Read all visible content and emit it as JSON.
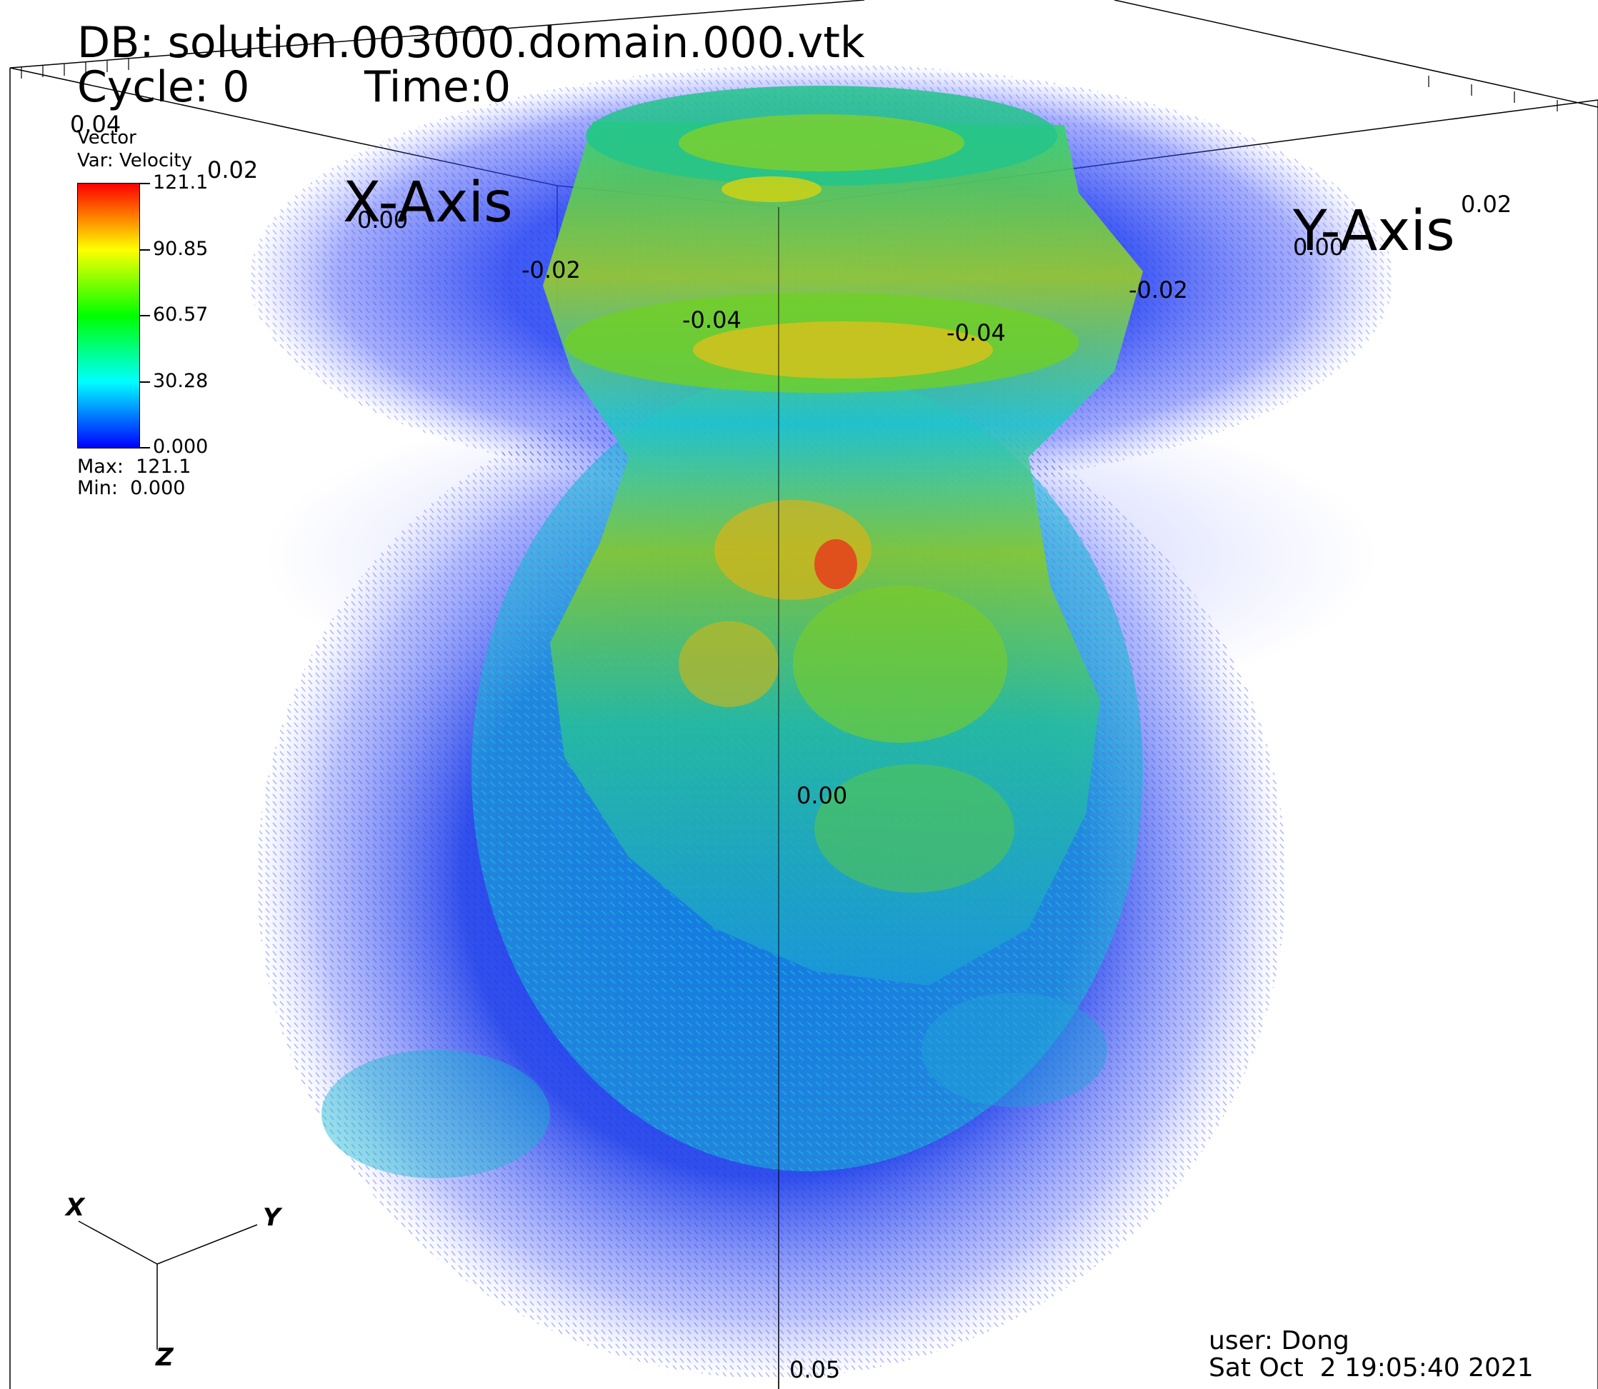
{
  "header": {
    "db": "DB: solution.003000.domain.000.vtk",
    "cycle": "Cycle: 0",
    "time": "Time:0"
  },
  "legend": {
    "plot_type": "Vector",
    "variable": "Var: Velocity",
    "ticks": [
      "121.1",
      "90.85",
      "60.57",
      "30.28",
      "0.000"
    ],
    "max": "Max:  121.1",
    "min": "Min:  0.000",
    "colors": [
      "#0000ff",
      "#00ffff",
      "#00ff00",
      "#ffff00",
      "#ff0000"
    ]
  },
  "axes": {
    "x_title": "X-Axis",
    "y_title": "Y-Axis",
    "labels": [
      "0.04",
      "0.02",
      "0.00",
      "-0.02",
      "-0.04",
      "0.02",
      "0.00",
      "-0.02",
      "-0.04",
      "0.00",
      "0.05"
    ]
  },
  "triad": {
    "x": "X",
    "y": "Y",
    "z": "Z"
  },
  "footer": {
    "user": "user: Dong",
    "date": "Sat Oct  2 19:05:40 2021"
  }
}
